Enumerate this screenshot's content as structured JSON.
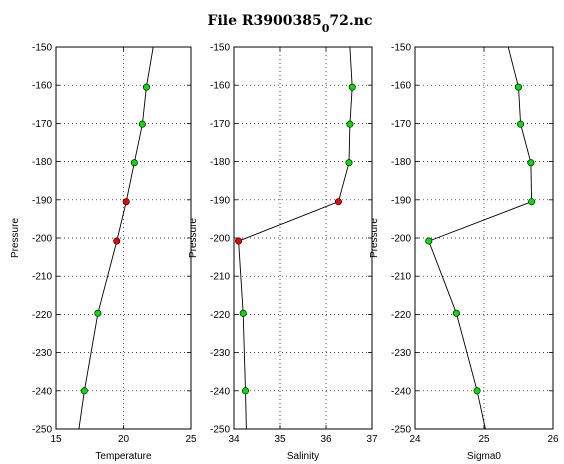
{
  "figure": {
    "title": "File R3900385",
    "title_subscript": "0",
    "title_suffix": "72.nc"
  },
  "chart_data": [
    {
      "type": "line",
      "xlabel": "Temperature",
      "ylabel": "Pressure",
      "xlim": [
        15,
        25
      ],
      "ylim": [
        -250,
        -150
      ],
      "xticks": [
        15,
        20,
        25
      ],
      "yticks": [
        -150,
        -160,
        -170,
        -180,
        -190,
        -200,
        -210,
        -220,
        -230,
        -240,
        -250
      ],
      "grid": true,
      "line": {
        "x": [
          22.2,
          21.7,
          21.4,
          20.8,
          20.2,
          19.5,
          18.1,
          17.1,
          16.7
        ],
        "y": [
          -150,
          -160.5,
          -170.2,
          -180.3,
          -190.5,
          -200.8,
          -219.7,
          -240,
          -250
        ]
      },
      "points": {
        "x": [
          21.7,
          21.4,
          20.8,
          20.2,
          19.5,
          18.1,
          17.1
        ],
        "y": [
          -160.5,
          -170.2,
          -180.3,
          -190.5,
          -200.8,
          -219.7,
          -240
        ],
        "colors": [
          "#00dd00",
          "#00dd00",
          "#00dd00",
          "#ee0000",
          "#ee0000",
          "#00dd00",
          "#00dd00"
        ]
      }
    },
    {
      "type": "line",
      "xlabel": "Salinity",
      "ylabel": "Pressure",
      "xlim": [
        34,
        37
      ],
      "ylim": [
        -250,
        -150
      ],
      "xticks": [
        34,
        35,
        36,
        37
      ],
      "yticks": [
        -150,
        -160,
        -170,
        -180,
        -190,
        -200,
        -210,
        -220,
        -230,
        -240,
        -250
      ],
      "grid": true,
      "line": {
        "x": [
          36.52,
          36.57,
          36.52,
          36.5,
          36.27,
          34.1,
          34.2,
          34.25,
          34.27
        ],
        "y": [
          -150,
          -160.5,
          -170.2,
          -180.3,
          -190.5,
          -200.8,
          -219.7,
          -240,
          -250
        ]
      },
      "points": {
        "x": [
          36.57,
          36.52,
          36.5,
          36.27,
          34.1,
          34.2,
          34.25
        ],
        "y": [
          -160.5,
          -170.2,
          -180.3,
          -190.5,
          -200.8,
          -219.7,
          -240
        ],
        "colors": [
          "#00dd00",
          "#00dd00",
          "#00dd00",
          "#ee0000",
          "#ee0000",
          "#00dd00",
          "#00dd00"
        ]
      }
    },
    {
      "type": "line",
      "xlabel": "Sigma0",
      "ylabel": "Pressure",
      "xlim": [
        24,
        26
      ],
      "ylim": [
        -250,
        -150
      ],
      "xticks": [
        24,
        25,
        26
      ],
      "yticks": [
        -150,
        -160,
        -170,
        -180,
        -190,
        -200,
        -210,
        -220,
        -230,
        -240,
        -250
      ],
      "grid": true,
      "line": {
        "x": [
          25.35,
          25.5,
          25.53,
          25.68,
          25.69,
          24.2,
          24.6,
          24.9,
          25.02
        ],
        "y": [
          -150,
          -160.5,
          -170.2,
          -180.3,
          -190.5,
          -200.8,
          -219.7,
          -240,
          -250
        ]
      },
      "points": {
        "x": [
          25.5,
          25.53,
          25.68,
          25.69,
          24.2,
          24.6,
          24.9
        ],
        "y": [
          -160.5,
          -170.2,
          -180.3,
          -190.5,
          -200.8,
          -219.7,
          -240
        ],
        "colors": [
          "#00dd00",
          "#00dd00",
          "#00dd00",
          "#00dd00",
          "#00dd00",
          "#00dd00",
          "#00dd00"
        ]
      }
    }
  ]
}
